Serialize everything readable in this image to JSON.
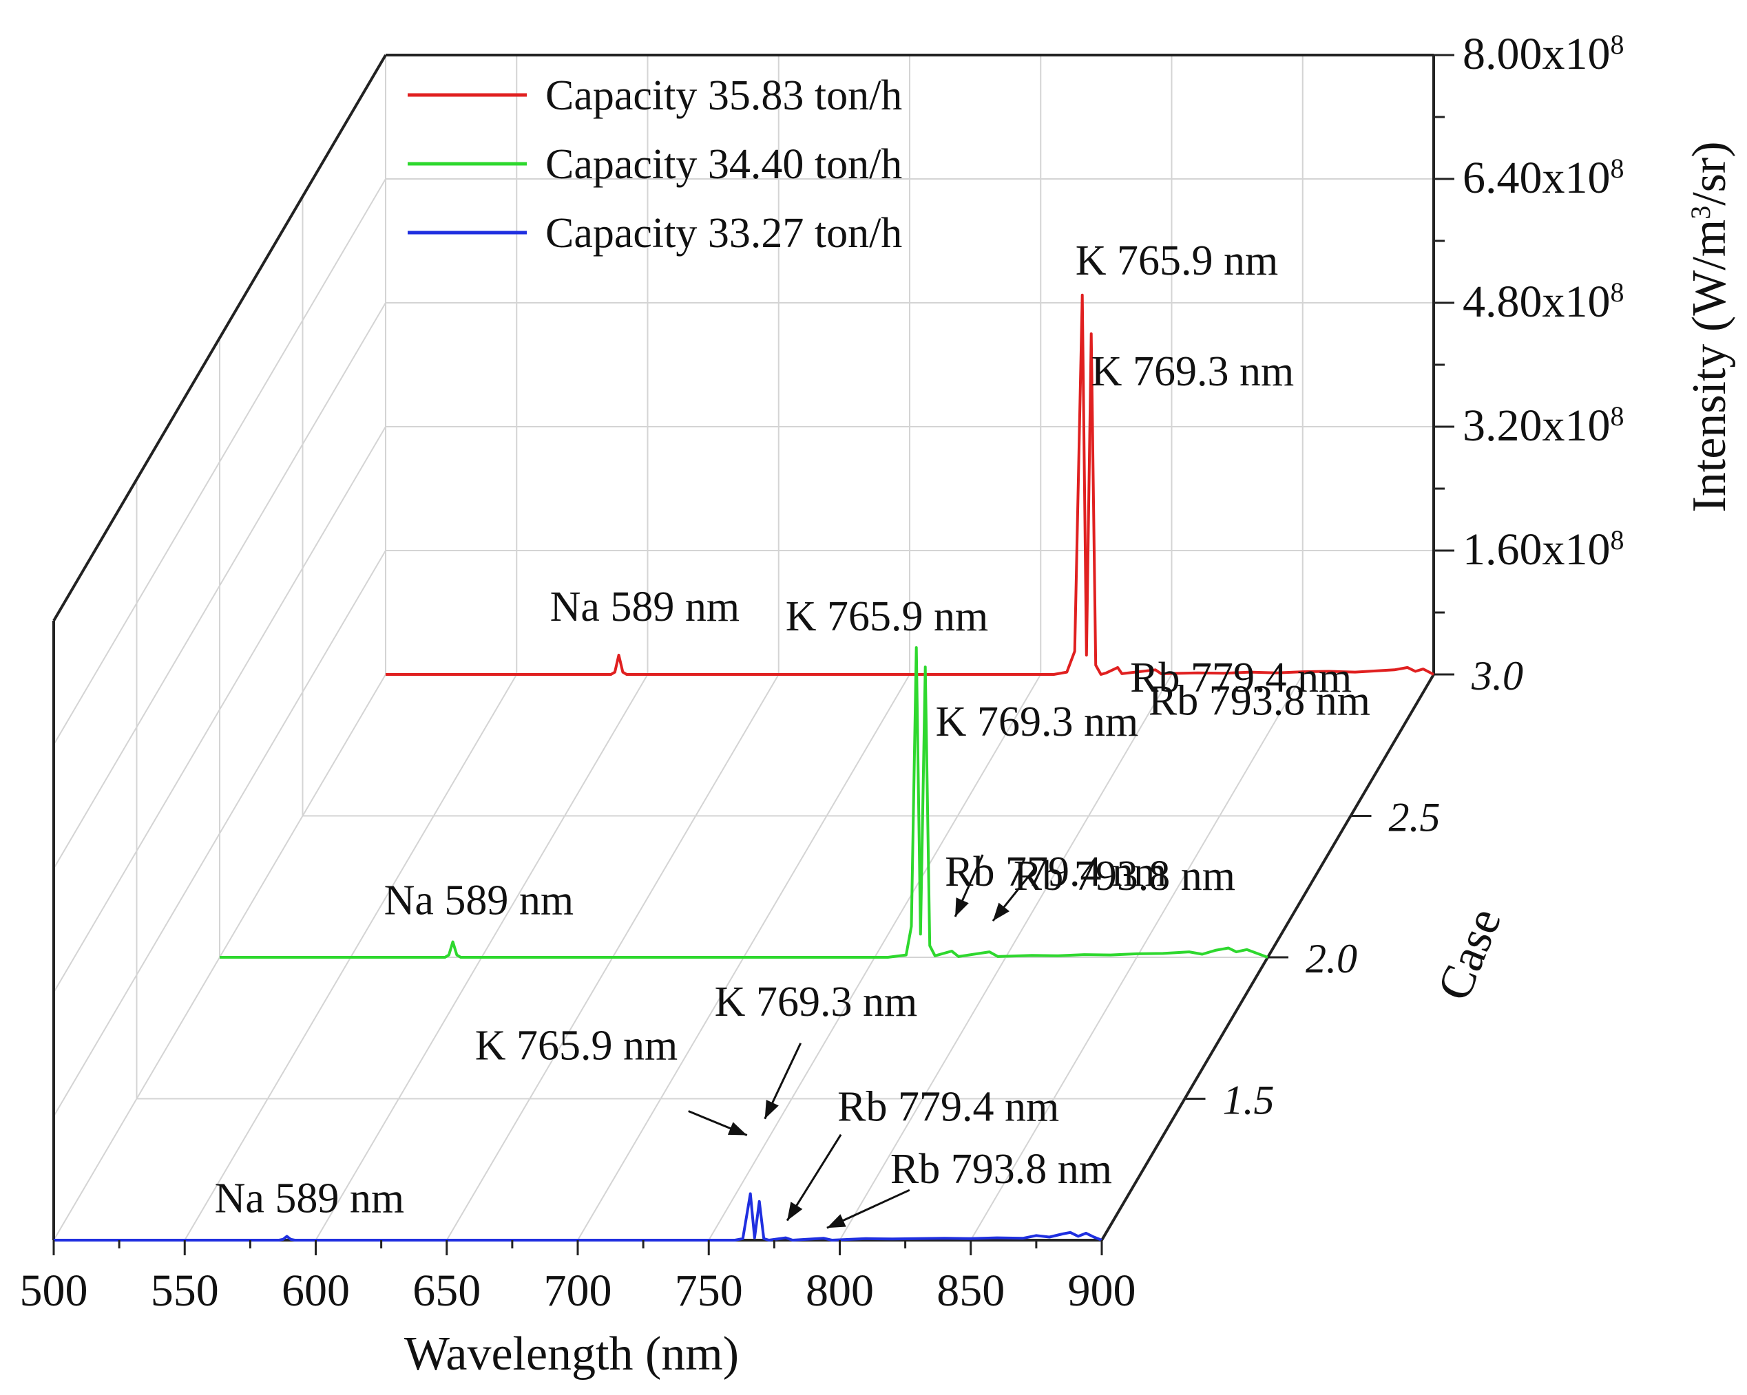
{
  "chart_data": {
    "type": "line",
    "projection": "3d-waterfall",
    "xlabel": "Wavelength (nm)",
    "xlim": [
      500,
      900
    ],
    "x_ticks": [
      "500",
      "550",
      "600",
      "650",
      "700",
      "750",
      "800",
      "850",
      "900"
    ],
    "ylabel": "Case",
    "ylim": [
      1.0,
      3.0
    ],
    "y_ticks": [
      "1.5",
      "2.0",
      "2.5",
      "3.0"
    ],
    "zlabel_main": "Intensity (W/m",
    "zlabel_sup": "3",
    "zlabel_tail": "/sr)",
    "zlim": [
      0,
      800000000
    ],
    "z_ticks": [
      {
        "mant": "1.60x10",
        "exp": "8"
      },
      {
        "mant": "3.20x10",
        "exp": "8"
      },
      {
        "mant": "4.80x10",
        "exp": "8"
      },
      {
        "mant": "6.40x10",
        "exp": "8"
      },
      {
        "mant": "8.00x10",
        "exp": "8"
      }
    ],
    "series": [
      {
        "name": "Capacity 35.83 ton/h",
        "color": "#e02020",
        "case": 3.0,
        "points": [
          [
            500,
            0
          ],
          [
            586,
            0
          ],
          [
            587.5,
            3000000
          ],
          [
            589,
            25000000
          ],
          [
            590.5,
            3000000
          ],
          [
            592,
            0
          ],
          [
            755,
            0
          ],
          [
            760,
            3000000
          ],
          [
            763,
            30000000
          ],
          [
            765.9,
            490000000
          ],
          [
            767.5,
            25000000
          ],
          [
            769.3,
            440000000
          ],
          [
            771,
            12000000
          ],
          [
            773,
            0
          ],
          [
            775,
            2000000
          ],
          [
            779.4,
            9000000
          ],
          [
            781,
            1000000
          ],
          [
            793.8,
            6000000
          ],
          [
            796,
            1000000
          ],
          [
            810,
            2000000
          ],
          [
            820,
            1500000
          ],
          [
            830,
            3000000
          ],
          [
            840,
            2000000
          ],
          [
            850,
            3500000
          ],
          [
            860,
            4000000
          ],
          [
            870,
            3000000
          ],
          [
            880,
            5000000
          ],
          [
            885,
            6000000
          ],
          [
            890,
            9000000
          ],
          [
            893,
            4000000
          ],
          [
            896,
            7000000
          ],
          [
            900,
            0
          ]
        ],
        "peaks": [
          {
            "label": "Na 589 nm",
            "x": 589
          },
          {
            "label": "K 765.9 nm",
            "x": 765.9
          },
          {
            "label": "K 769.3 nm",
            "x": 769.3
          },
          {
            "label": "Rb 779.4 nm",
            "x": 779.4
          },
          {
            "label": "Rb 793.8 nm",
            "x": 793.8
          }
        ]
      },
      {
        "name": "Capacity 34.40 ton/h",
        "color": "#2ed82e",
        "case": 2.0,
        "points": [
          [
            500,
            0
          ],
          [
            586,
            0
          ],
          [
            587.5,
            3000000
          ],
          [
            589,
            20000000
          ],
          [
            590.5,
            3000000
          ],
          [
            592,
            0
          ],
          [
            755,
            0
          ],
          [
            762,
            3000000
          ],
          [
            764,
            40000000
          ],
          [
            765.9,
            400000000
          ],
          [
            767.5,
            30000000
          ],
          [
            769.3,
            375000000
          ],
          [
            771,
            15000000
          ],
          [
            773,
            2000000
          ],
          [
            779.4,
            8000000
          ],
          [
            782,
            1000000
          ],
          [
            793.8,
            7000000
          ],
          [
            797,
            1000000
          ],
          [
            810,
            2500000
          ],
          [
            820,
            2000000
          ],
          [
            830,
            3500000
          ],
          [
            840,
            3000000
          ],
          [
            850,
            4500000
          ],
          [
            860,
            5000000
          ],
          [
            870,
            7000000
          ],
          [
            875,
            4000000
          ],
          [
            880,
            9000000
          ],
          [
            885,
            12000000
          ],
          [
            888,
            7000000
          ],
          [
            892,
            10000000
          ],
          [
            896,
            5000000
          ],
          [
            900,
            0
          ]
        ],
        "peaks": [
          {
            "label": "Na 589 nm",
            "x": 589
          },
          {
            "label": "K 765.9 nm",
            "x": 765.9
          },
          {
            "label": "K 769.3 nm",
            "x": 769.3
          },
          {
            "label": "Rb 779.4 nm",
            "x": 779.4
          },
          {
            "label": "Rb 793.8 nm",
            "x": 793.8
          }
        ]
      },
      {
        "name": "Capacity 33.27 ton/h",
        "color": "#1f2fe0",
        "case": 1.0,
        "points": [
          [
            500,
            0
          ],
          [
            586,
            0
          ],
          [
            587.5,
            1000000
          ],
          [
            589,
            5000000
          ],
          [
            590.5,
            1000000
          ],
          [
            592,
            0
          ],
          [
            760,
            0
          ],
          [
            763,
            2000000
          ],
          [
            765.9,
            60000000
          ],
          [
            767.5,
            3000000
          ],
          [
            769.3,
            50000000
          ],
          [
            771,
            2000000
          ],
          [
            773,
            0
          ],
          [
            779.4,
            3000000
          ],
          [
            782,
            0
          ],
          [
            793.8,
            2500000
          ],
          [
            797,
            0
          ],
          [
            810,
            2000000
          ],
          [
            820,
            1500000
          ],
          [
            830,
            2000000
          ],
          [
            840,
            2500000
          ],
          [
            850,
            2000000
          ],
          [
            860,
            3000000
          ],
          [
            870,
            2500000
          ],
          [
            875,
            6000000
          ],
          [
            880,
            4000000
          ],
          [
            885,
            8000000
          ],
          [
            888,
            10000000
          ],
          [
            891,
            5000000
          ],
          [
            894,
            9000000
          ],
          [
            897,
            4000000
          ],
          [
            900,
            0
          ]
        ],
        "peaks": [
          {
            "label": "Na 589 nm",
            "x": 589
          },
          {
            "label": "K 765.9 nm",
            "x": 765.9
          },
          {
            "label": "K 769.3 nm",
            "x": 769.3
          },
          {
            "label": "Rb 779.4 nm",
            "x": 779.4
          },
          {
            "label": "Rb 793.8 nm",
            "x": 793.8
          }
        ]
      }
    ],
    "legend": {
      "position": "top-left",
      "items": [
        "Capacity 35.83 ton/h",
        "Capacity 34.40 ton/h",
        "Capacity 33.27 ton/h"
      ]
    },
    "grid": true
  }
}
